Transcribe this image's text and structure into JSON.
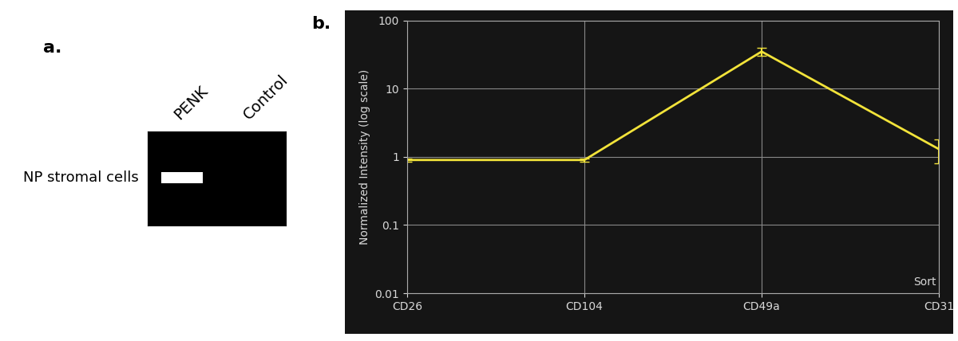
{
  "panel_a": {
    "label": "a.",
    "lanes": [
      "PENK",
      "Control"
    ],
    "row_label": "NP stromal cells"
  },
  "chart_data": {
    "type": "line",
    "panel_label": "b.",
    "categories": [
      "CD26",
      "CD104",
      "CD49a",
      "CD31"
    ],
    "values": [
      0.9,
      0.9,
      35,
      1.3
    ],
    "errors": [
      0.05,
      0.05,
      5,
      0.5
    ],
    "color": "#f2e33a",
    "ylabel": "Normalized Intensity (log scale)",
    "ylim": [
      0.01,
      100
    ],
    "yticks": [
      0.01,
      0.1,
      1,
      10,
      100
    ],
    "log": "y",
    "grid": true,
    "annotations": [
      "Sort"
    ]
  }
}
